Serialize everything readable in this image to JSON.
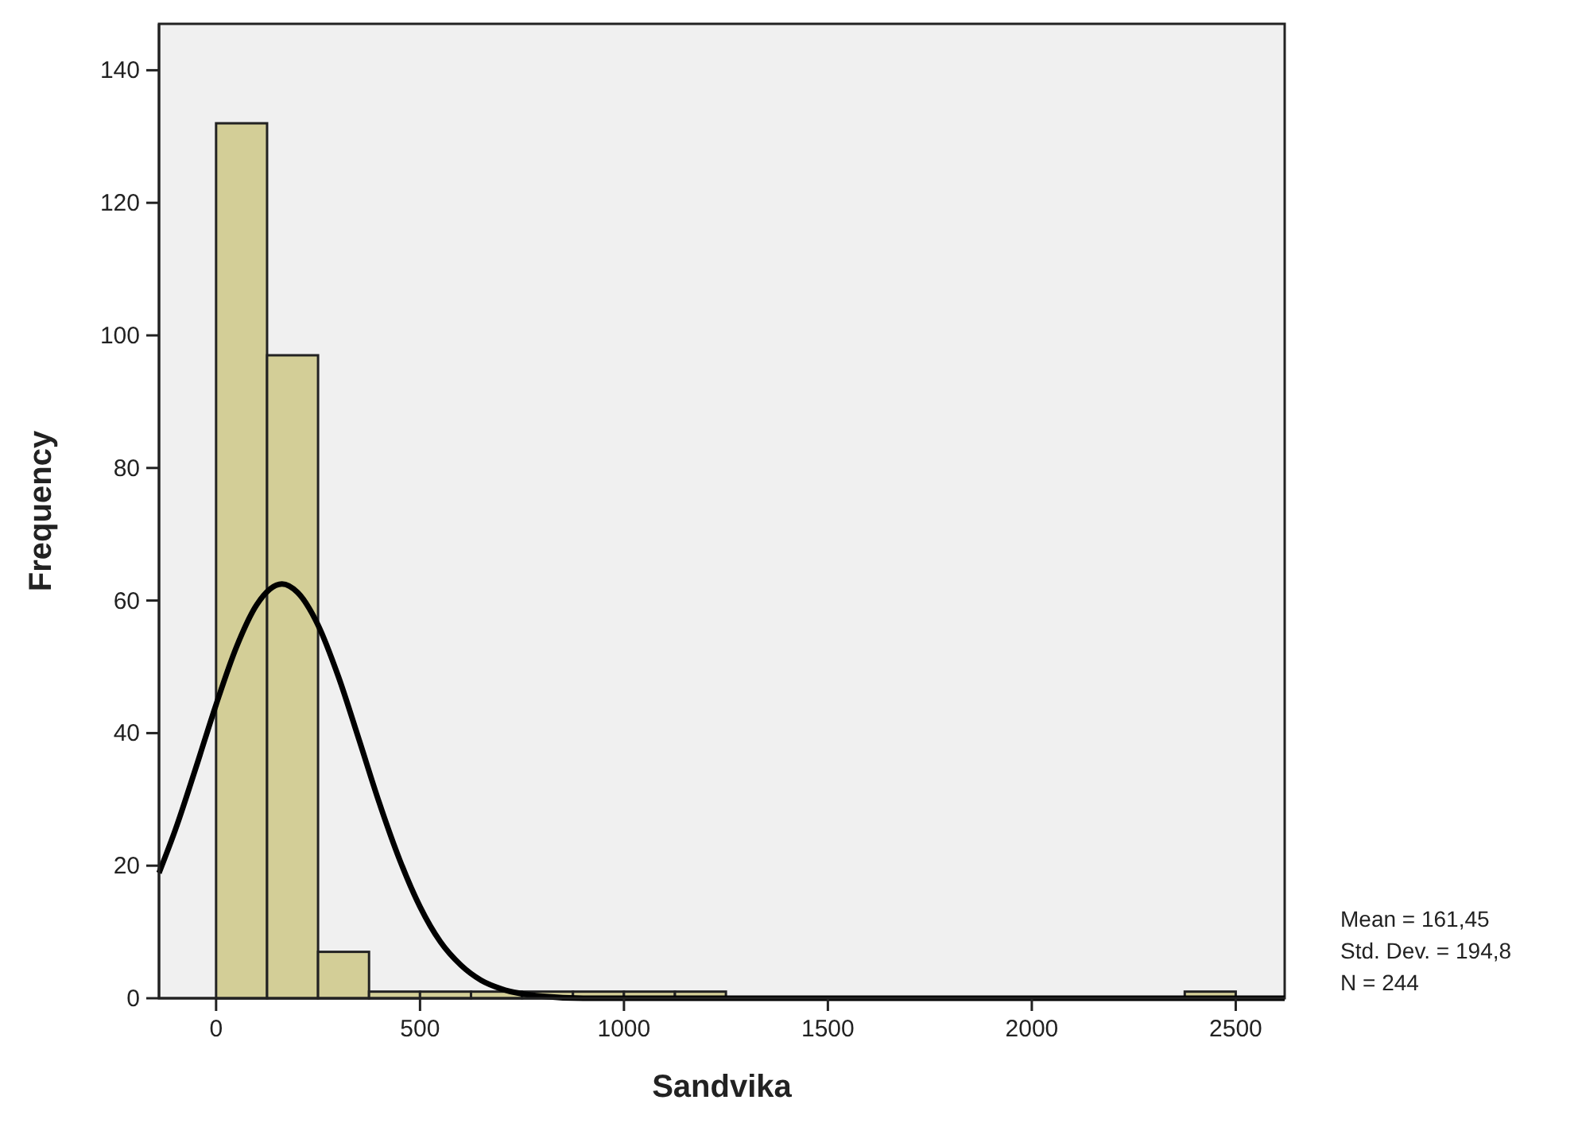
{
  "chart_data": {
    "type": "histogram",
    "xlabel": "Sandvika",
    "ylabel": "Frequency",
    "xlim": [
      -140,
      2620
    ],
    "ylim": [
      0,
      147
    ],
    "xticks": [
      0,
      500,
      1000,
      1500,
      2000,
      2500
    ],
    "yticks": [
      0,
      20,
      40,
      60,
      80,
      100,
      120,
      140
    ],
    "grid": false,
    "series": [
      {
        "color": "#d3ce97",
        "bins": [
          0,
          125,
          250,
          375,
          500,
          625,
          750,
          875,
          1000,
          1125,
          1250,
          1375,
          1500,
          1625,
          1750,
          1875,
          2000,
          2125,
          2250,
          2375,
          2500
        ],
        "values": [
          132,
          97,
          7,
          1,
          1,
          1,
          1,
          1,
          1,
          1,
          0,
          0,
          0,
          0,
          0,
          0,
          0,
          0,
          0,
          1
        ]
      },
      {
        "type": "line",
        "color": "#000000",
        "x": [
          -140,
          -100,
          -50,
          0,
          50,
          100,
          161.45,
          200,
          250,
          300,
          350,
          400,
          450,
          500,
          550,
          600,
          650,
          700,
          800,
          900,
          1000,
          1500,
          2000,
          2620
        ],
        "values": [
          18.9,
          25.4,
          34.7,
          44.3,
          53.0,
          59.4,
          62.5,
          61.2,
          56.3,
          48.5,
          39.1,
          29.5,
          20.9,
          13.8,
          8.5,
          5.0,
          2.7,
          1.4,
          0.3,
          0.0,
          0,
          0,
          0,
          0
        ]
      }
    ],
    "annotations": [
      "Mean = 161,45",
      "Std. Dev. = 194,8",
      "N = 244"
    ]
  }
}
